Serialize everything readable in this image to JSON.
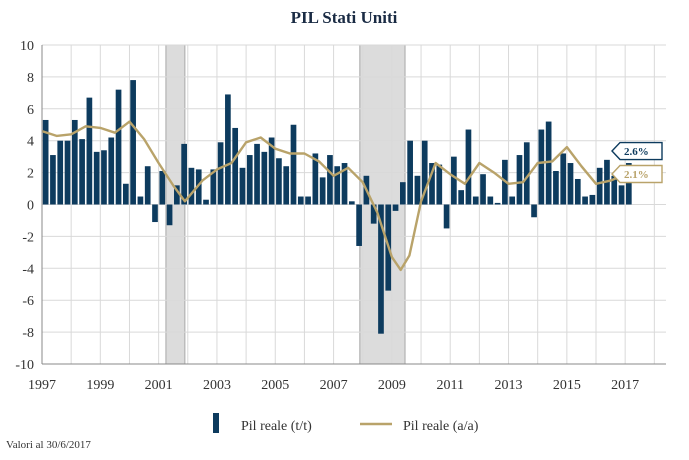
{
  "chart_data": {
    "type": "bar+line",
    "title": "PIL Stati Uniti",
    "xlabel": "",
    "ylabel": "",
    "ylim": [
      -10,
      10
    ],
    "yticks": [
      10,
      8,
      6,
      4,
      2,
      0,
      -2,
      -4,
      -6,
      -8,
      -10
    ],
    "xrange": [
      1997,
      2018.4
    ],
    "xticks": [
      1997,
      1999,
      2001,
      2003,
      2005,
      2007,
      2009,
      2011,
      2013,
      2015,
      2017
    ],
    "grid": true,
    "legend_position": "bottom",
    "colors": {
      "bars": "#0d3b5e",
      "line": "#b9a36a",
      "recession": "#dcdcdc",
      "grid": "#d9d9d9"
    },
    "recessions": [
      {
        "start": 2001.25,
        "end": 2001.9
      },
      {
        "start": 2007.9,
        "end": 2009.45
      }
    ],
    "series": [
      {
        "name": "Pil reale (t/t)",
        "kind": "bar",
        "start": 1997.0,
        "step": 0.25,
        "values": [
          5.3,
          3.1,
          4.0,
          4.0,
          5.3,
          4.1,
          6.7,
          3.3,
          3.4,
          4.2,
          7.2,
          1.3,
          7.8,
          0.5,
          2.4,
          -1.1,
          2.1,
          -1.3,
          1.2,
          3.8,
          2.3,
          2.2,
          0.3,
          2.2,
          3.9,
          6.9,
          4.8,
          2.3,
          3.1,
          3.8,
          3.3,
          4.2,
          2.9,
          2.4,
          5.0,
          0.5,
          0.5,
          3.2,
          1.7,
          3.1,
          2.4,
          2.6,
          0.2,
          -2.6,
          1.8,
          -1.2,
          -8.1,
          -5.4,
          -0.4,
          1.4,
          4.0,
          1.8,
          4.0,
          2.6,
          2.5,
          -1.5,
          3.0,
          0.9,
          4.7,
          0.5,
          1.9,
          0.5,
          0.1,
          2.8,
          0.5,
          3.1,
          3.9,
          -0.8,
          4.7,
          5.2,
          2.1,
          3.2,
          2.6,
          1.6,
          0.5,
          0.6,
          2.3,
          2.8,
          1.8,
          1.2,
          2.6
        ]
      },
      {
        "name": "Pil reale (a/a)",
        "kind": "line",
        "x": [
          1997.0,
          1997.5,
          1998.0,
          1998.5,
          1999.0,
          1999.5,
          2000.0,
          2000.5,
          2001.0,
          2001.5,
          2001.9,
          2002.5,
          2003.0,
          2003.5,
          2004.0,
          2004.5,
          2005.0,
          2005.5,
          2006.0,
          2006.5,
          2007.0,
          2007.5,
          2008.0,
          2008.5,
          2009.0,
          2009.3,
          2009.6,
          2010.0,
          2010.5,
          2011.0,
          2011.5,
          2012.0,
          2012.5,
          2013.0,
          2013.5,
          2014.0,
          2014.5,
          2015.0,
          2015.5,
          2016.0,
          2016.5,
          2017.0,
          2017.3
        ],
        "values": [
          4.6,
          4.3,
          4.4,
          4.9,
          4.8,
          4.5,
          5.2,
          4.1,
          2.6,
          1.2,
          0.2,
          1.5,
          2.2,
          2.6,
          3.9,
          4.2,
          3.5,
          3.2,
          3.2,
          2.7,
          1.8,
          2.3,
          1.4,
          -0.5,
          -3.3,
          -4.1,
          -3.2,
          0.2,
          2.6,
          1.9,
          1.3,
          2.6,
          2.0,
          1.3,
          1.4,
          2.6,
          2.7,
          3.6,
          2.4,
          1.3,
          1.5,
          1.9,
          2.1
        ]
      }
    ],
    "callouts": [
      {
        "text": "2.6%",
        "value": 2.6,
        "series": "Pil reale (t/t)"
      },
      {
        "text": "2.1%",
        "value": 2.1,
        "series": "Pil reale (a/a)"
      }
    ]
  },
  "footnote": "Valori al 30/6/2017"
}
